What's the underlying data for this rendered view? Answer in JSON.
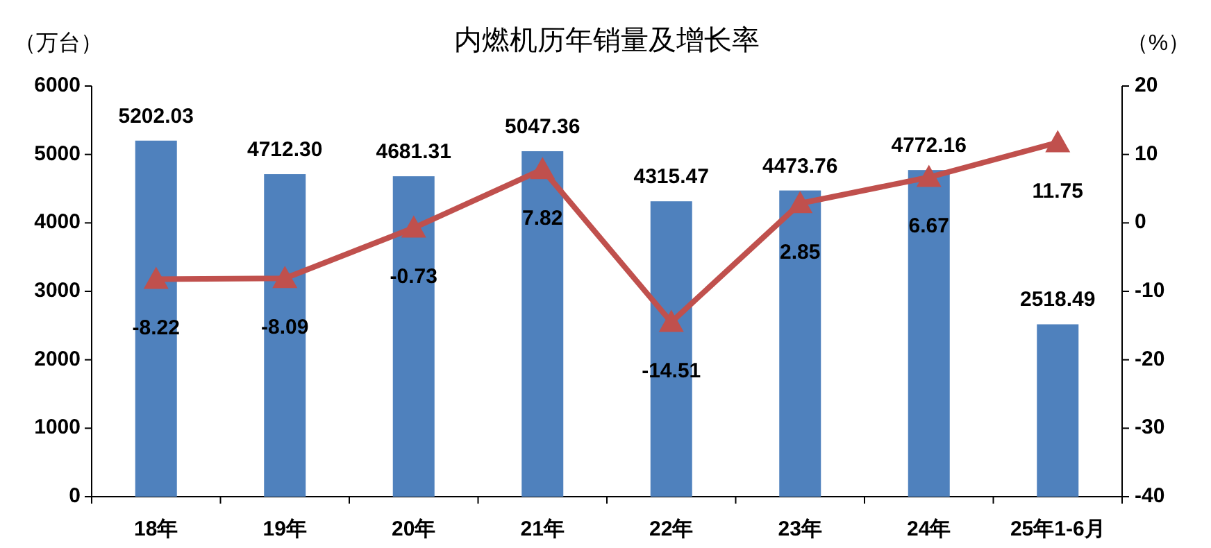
{
  "chart_data": {
    "type": "bar",
    "title": "内燃机历年销量及增长率",
    "ylabel": "（万台）",
    "y2label": "（%）",
    "categories": [
      "18年",
      "19年",
      "20年",
      "21年",
      "22年",
      "23年",
      "24年",
      "25年1-6月"
    ],
    "series": [
      {
        "color": "#4f81bd",
        "values": [
          5202.03,
          4712.3,
          4681.31,
          5047.36,
          4315.47,
          4473.76,
          4772.16,
          2518.49
        ],
        "value_labels": [
          "5202.03",
          "4712.30",
          "4681.31",
          "5047.36",
          "4315.47",
          "4473.76",
          "4772.16",
          "2518.49"
        ]
      },
      {
        "type": "line",
        "axis": "y2",
        "color": "#c0504d",
        "marker": "triangle",
        "line_style": "solid",
        "values": [
          -8.22,
          -8.09,
          -0.73,
          7.82,
          -14.51,
          2.85,
          6.67,
          11.75
        ],
        "value_labels": [
          "-8.22",
          "-8.09",
          "-0.73",
          "7.82",
          "-14.51",
          "2.85",
          "6.67",
          "11.75"
        ]
      }
    ],
    "ylim": [
      0,
      6000
    ],
    "yticks": [
      0,
      1000,
      2000,
      3000,
      4000,
      5000,
      6000
    ],
    "y2lim": [
      -40,
      20
    ],
    "y2ticks": [
      -40,
      -30,
      -20,
      -10,
      0,
      10,
      20
    ],
    "grid": false
  }
}
